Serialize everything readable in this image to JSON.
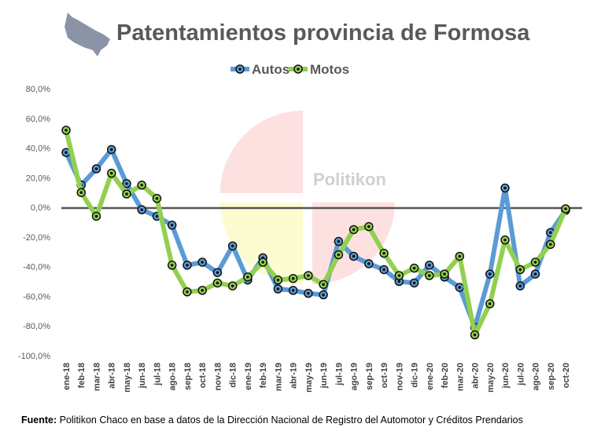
{
  "chart_data": {
    "type": "line",
    "title": "Patentamientos provincia de Formosa",
    "categories": [
      "ene-18",
      "feb-18",
      "mar-18",
      "abr-18",
      "may-18",
      "jun-18",
      "jul-18",
      "ago-18",
      "sep-18",
      "oct-18",
      "nov-18",
      "dic-18",
      "ene-19",
      "feb-19",
      "mar-19",
      "abr-19",
      "may-19",
      "jun-19",
      "jul-19",
      "ago-19",
      "sep-19",
      "oct-19",
      "nov-19",
      "dic-19",
      "ene-20",
      "feb-20",
      "mar-20",
      "abr-20",
      "may-20",
      "jun-20",
      "jul-20",
      "ago-20",
      "sep-20",
      "oct-20"
    ],
    "series": [
      {
        "name": "Autos",
        "color": "#5B9BD5",
        "values": [
          37,
          15,
          26,
          39,
          16,
          -1.6,
          -6,
          -12,
          -39,
          -37,
          -44,
          -26,
          -49,
          -34,
          -55,
          -56,
          -58,
          -59,
          -23,
          -33,
          -38,
          -42,
          -50,
          -51,
          -39,
          -47,
          -54,
          -81,
          -45,
          13,
          -53,
          -45,
          -17,
          -2
        ]
      },
      {
        "name": "Motos",
        "color": "#92D050",
        "values": [
          52,
          10,
          -6,
          23,
          9,
          15,
          6,
          -39,
          -57,
          -56,
          -51,
          -53,
          -47,
          -37,
          -49,
          -48,
          -46,
          -52,
          -32,
          -15,
          -13,
          -31,
          -46,
          -41,
          -46,
          -45,
          -33,
          -86,
          -65,
          -22,
          -42,
          -37,
          -25,
          -1
        ]
      }
    ],
    "ylim": [
      -100,
      80
    ],
    "yticks": [
      "80,0%",
      "60,0%",
      "40,0%",
      "20,0%",
      "0,0%",
      "-20,0%",
      "-40,0%",
      "-60,0%",
      "-80,0%",
      "-100,0%"
    ],
    "ytick_values": [
      80,
      60,
      40,
      20,
      0,
      -20,
      -40,
      -60,
      -80,
      -100
    ],
    "legend_position": "top",
    "grid": false,
    "xlabel": "",
    "ylabel": ""
  },
  "watermark": "Politikon",
  "source": {
    "label": "Fuente:",
    "text": " Politikon Chaco en base a datos de la Dirección Nacional de Registro del Automotor  y Créditos Prendarios"
  }
}
